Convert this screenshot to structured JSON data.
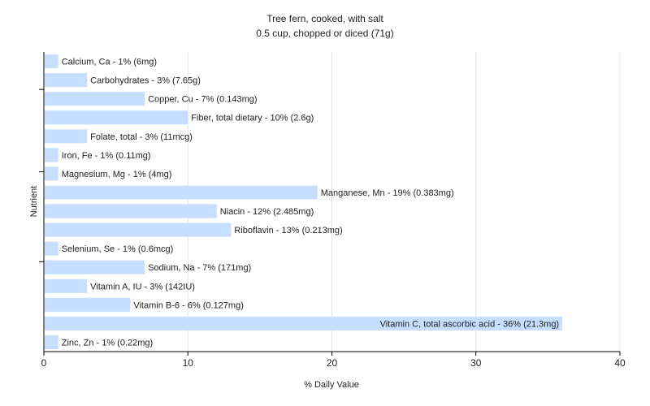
{
  "chart_data": {
    "type": "bar",
    "orientation": "horizontal",
    "title": "Tree fern, cooked, with salt",
    "subtitle": "0.5 cup, chopped or diced (71g)",
    "xlabel": "% Daily Value",
    "ylabel": "Nutrient",
    "xlim": [
      0,
      40
    ],
    "xticks": [
      0,
      10,
      20,
      30,
      40
    ],
    "grid": true,
    "bar_color": "#c6deff",
    "categories": [
      "Calcium, Ca",
      "Carbohydrates",
      "Copper, Cu",
      "Fiber, total dietary",
      "Folate, total",
      "Iron, Fe",
      "Magnesium, Mg",
      "Manganese, Mn",
      "Niacin",
      "Riboflavin",
      "Selenium, Se",
      "Sodium, Na",
      "Vitamin A, IU",
      "Vitamin B-6",
      "Vitamin C, total ascorbic acid",
      "Zinc, Zn"
    ],
    "values": [
      1,
      3,
      7,
      10,
      3,
      1,
      1,
      19,
      12,
      13,
      1,
      7,
      3,
      6,
      36,
      1
    ],
    "labels": [
      "Calcium, Ca - 1% (6mg)",
      "Carbohydrates - 3% (7.65g)",
      "Copper, Cu - 7% (0.143mg)",
      "Fiber, total dietary - 10% (2.6g)",
      "Folate, total - 3% (11mcg)",
      "Iron, Fe - 1% (0.11mg)",
      "Magnesium, Mg - 1% (4mg)",
      "Manganese, Mn - 19% (0.383mg)",
      "Niacin - 12% (2.485mg)",
      "Riboflavin - 13% (0.213mg)",
      "Selenium, Se - 1% (0.6mcg)",
      "Sodium, Na - 7% (171mg)",
      "Vitamin A, IU - 3% (142IU)",
      "Vitamin B-6 - 6% (0.127mg)",
      "Vitamin C, total ascorbic acid - 36% (21.3mg)",
      "Zinc, Zn - 1% (0.22mg)"
    ]
  }
}
